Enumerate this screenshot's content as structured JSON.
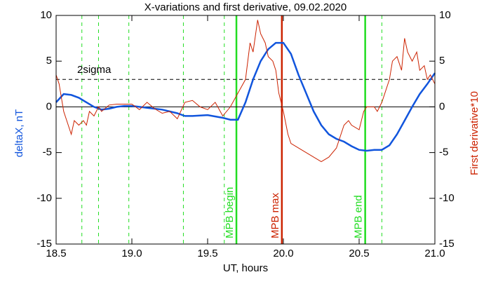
{
  "chart_data": {
    "type": "line",
    "title": "X-variations and first derivative, 09.02.2020",
    "xlabel": "UT, hours",
    "ylabel": "deltaX, nT",
    "y2label": "First derivative*10",
    "xlim": [
      18.5,
      21.0
    ],
    "xticks": [
      18.5,
      {
        "value": 19.0,
        "label": "19.0"
      },
      19.5,
      {
        "value": 20.0,
        "label": "20.0"
      },
      20.5,
      {
        "value": 21.0,
        "label": "21.0"
      }
    ],
    "ylim": [
      -15,
      10
    ],
    "yticks": [
      -15,
      -10,
      -5,
      0,
      5,
      10
    ],
    "y2lim": [
      -15,
      10
    ],
    "y2ticks": [
      -15,
      -10,
      -5,
      0,
      5,
      10
    ],
    "series": [
      {
        "name": "deltaX, nT",
        "color": "#1155dd",
        "axis": "y",
        "x": [
          18.5,
          18.55,
          18.6,
          18.65,
          18.7,
          18.75,
          18.8,
          18.85,
          18.9,
          18.95,
          19.0,
          19.05,
          19.1,
          19.2,
          19.3,
          19.35,
          19.4,
          19.5,
          19.6,
          19.65,
          19.7,
          19.75,
          19.8,
          19.85,
          19.9,
          19.95,
          20.0,
          20.05,
          20.1,
          20.15,
          20.2,
          20.25,
          20.3,
          20.35,
          20.4,
          20.45,
          20.5,
          20.55,
          20.6,
          20.65,
          20.7,
          20.75,
          20.8,
          20.85,
          20.9,
          20.95,
          21.0
        ],
        "values": [
          0.5,
          1.4,
          1.3,
          1.0,
          0.5,
          0,
          -0.3,
          -0.2,
          0,
          0.1,
          0.1,
          0,
          -0.1,
          -0.3,
          -0.7,
          -1.0,
          -1.0,
          -0.9,
          -1.2,
          -1.4,
          -1.4,
          0.5,
          3.0,
          5.0,
          6.3,
          7.0,
          7.0,
          5.8,
          3.5,
          1.5,
          -0.5,
          -2.0,
          -3.0,
          -3.5,
          -3.8,
          -4.3,
          -4.7,
          -4.8,
          -4.7,
          -4.7,
          -4.2,
          -3.0,
          -1.5,
          0,
          1.4,
          2.5,
          3.7
        ]
      },
      {
        "name": "First derivative*10",
        "color": "#cc2200",
        "axis": "y2",
        "x": [
          18.5,
          18.52,
          18.55,
          18.58,
          18.6,
          18.62,
          18.65,
          18.68,
          18.7,
          18.72,
          18.75,
          18.78,
          18.8,
          18.85,
          18.9,
          19.0,
          19.05,
          19.1,
          19.15,
          19.2,
          19.25,
          19.3,
          19.35,
          19.4,
          19.45,
          19.5,
          19.55,
          19.6,
          19.65,
          19.7,
          19.75,
          19.78,
          19.8,
          19.83,
          19.85,
          19.88,
          19.9,
          19.93,
          19.95,
          19.97,
          20.0,
          20.03,
          20.05,
          20.1,
          20.15,
          20.2,
          20.25,
          20.3,
          20.35,
          20.4,
          20.43,
          20.45,
          20.5,
          20.53,
          20.55,
          20.6,
          20.62,
          20.65,
          20.7,
          20.72,
          20.75,
          20.78,
          20.8,
          20.82,
          20.85,
          20.88,
          20.9,
          20.93,
          20.95,
          20.97,
          21.0
        ],
        "values": [
          3.5,
          2.5,
          -0.5,
          -2,
          -3,
          -1.5,
          -2,
          -1.5,
          -2,
          -0.5,
          -1,
          0,
          -0.5,
          0.2,
          0.3,
          0.3,
          -0.3,
          0.5,
          -0.2,
          -0.7,
          -0.5,
          -1.3,
          0.5,
          0.7,
          0,
          -0.3,
          0.5,
          -1,
          0,
          1.5,
          3,
          7,
          6,
          9.5,
          8,
          7,
          5.5,
          5,
          4,
          1.5,
          -0.5,
          -3,
          -4,
          -4.5,
          -5,
          -5.5,
          -6,
          -5.5,
          -4.5,
          -2,
          -1.5,
          -2,
          -2.5,
          -0.5,
          0,
          0,
          -0.5,
          0.5,
          3,
          5,
          5.5,
          4,
          7.5,
          6,
          5,
          6,
          4,
          4.5,
          3,
          3.5,
          2.5
        ]
      }
    ],
    "hlines": [
      {
        "value": 3,
        "label": "2sigma"
      }
    ],
    "vlines": [
      {
        "x": 18.67,
        "color": "#22dd22",
        "dashed": true
      },
      {
        "x": 18.78,
        "color": "#22dd22",
        "dashed": true
      },
      {
        "x": 18.98,
        "color": "#22dd22",
        "dashed": true
      },
      {
        "x": 19.34,
        "color": "#22dd22",
        "dashed": true
      },
      {
        "x": 19.61,
        "color": "#22dd22",
        "dashed": true
      },
      {
        "x": 20.65,
        "color": "#22dd22",
        "dashed": true
      },
      {
        "x": 19.69,
        "color": "#22dd22",
        "dashed": false,
        "label": "MPB begin"
      },
      {
        "x": 19.99,
        "color": "#cc2200",
        "dashed": false,
        "label": "MPB max"
      },
      {
        "x": 20.54,
        "color": "#22dd22",
        "dashed": false,
        "label": "MPB end"
      }
    ]
  }
}
